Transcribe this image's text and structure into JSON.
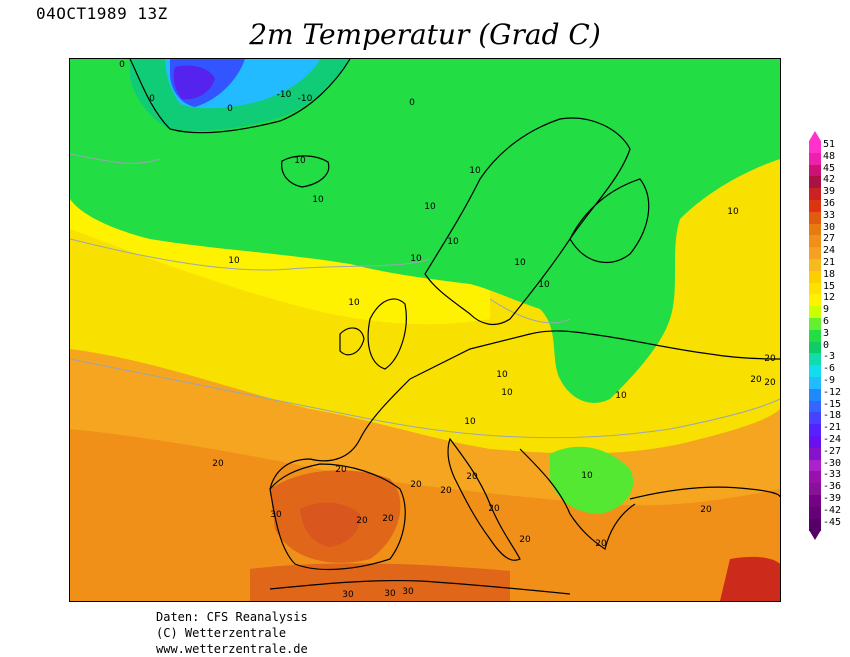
{
  "header": {
    "timestamp": "04OCT1989 13Z",
    "title": "2m Temperatur (Grad C)"
  },
  "footer": {
    "line1": "Daten: CFS Reanalysis",
    "line2": "(C) Wetterzentrale",
    "line3": "www.wetterzentrale.de"
  },
  "map": {
    "contour_labels": [
      "0",
      "0",
      "0",
      "0",
      "-10",
      "-10",
      "10",
      "10",
      "10",
      "10",
      "10",
      "10",
      "10",
      "10",
      "10",
      "10",
      "10",
      "10",
      "10",
      "10",
      "10",
      "10",
      "20",
      "20",
      "20",
      "20",
      "20",
      "20",
      "20",
      "20",
      "20",
      "20",
      "20",
      "20",
      "20",
      "20",
      "30",
      "30",
      "30",
      "30"
    ]
  },
  "legend": {
    "ticks": [
      "51",
      "48",
      "45",
      "42",
      "39",
      "36",
      "33",
      "30",
      "27",
      "24",
      "21",
      "18",
      "15",
      "12",
      "9",
      "6",
      "3",
      "0",
      "-3",
      "-6",
      "-9",
      "-12",
      "-15",
      "-18",
      "-21",
      "-24",
      "-27",
      "-30",
      "-33",
      "-36",
      "-39",
      "-42",
      "-45"
    ],
    "colors": [
      "#ff33cc",
      "#ee22aa",
      "#cc1177",
      "#aa1144",
      "#cc2222",
      "#dd3311",
      "#e05a10",
      "#e87a10",
      "#f09018",
      "#f5a020",
      "#f8b820",
      "#fcd000",
      "#ffe100",
      "#fff200",
      "#ccff00",
      "#66ee33",
      "#22dd44",
      "#11cc66",
      "#11ddaa",
      "#11ddee",
      "#22bbff",
      "#2288ff",
      "#3366ff",
      "#4444ff",
      "#5522ff",
      "#6611ee",
      "#8811cc",
      "#aa22cc",
      "#9911aa",
      "#881199",
      "#770088",
      "#660077",
      "#550066"
    ]
  }
}
